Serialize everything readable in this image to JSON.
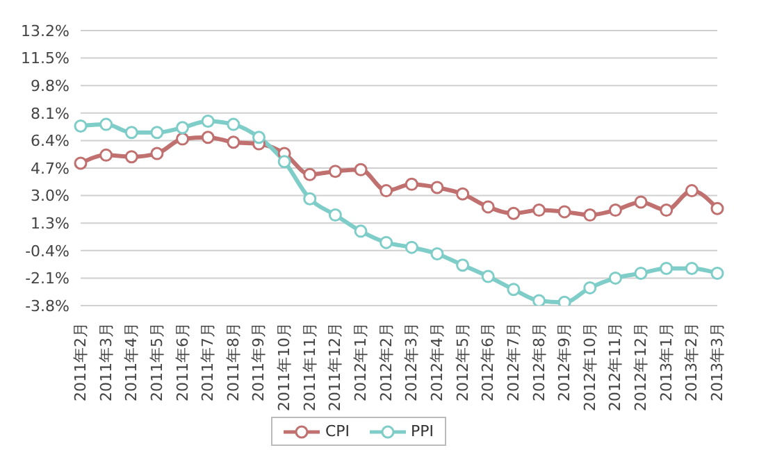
{
  "chart_data": {
    "type": "line",
    "categories": [
      "2011年2月",
      "2011年3月",
      "2011年4月",
      "2011年5月",
      "2011年6月",
      "2011年7月",
      "2011年8月",
      "2011年9月",
      "2011年10月",
      "2011年11月",
      "2011年12月",
      "2012年1月",
      "2012年2月",
      "2012年3月",
      "2012年4月",
      "2012年5月",
      "2012年6月",
      "2012年7月",
      "2012年8月",
      "2012年9月",
      "2012年10月",
      "2012年11月",
      "2012年12月",
      "2013年1月",
      "2013年2月",
      "2013年3月"
    ],
    "series": [
      {
        "name": "CPI",
        "color": "#c0706f",
        "values": [
          5.0,
          5.5,
          5.4,
          5.6,
          6.5,
          6.6,
          6.3,
          6.2,
          5.6,
          4.3,
          4.5,
          4.6,
          3.3,
          3.7,
          3.5,
          3.1,
          2.3,
          1.9,
          2.1,
          2.0,
          1.8,
          2.1,
          2.6,
          2.1,
          3.3,
          2.2
        ]
      },
      {
        "name": "PPI",
        "color": "#7ecdc8",
        "values": [
          7.3,
          7.4,
          6.9,
          6.9,
          7.2,
          7.6,
          7.4,
          6.6,
          5.1,
          2.8,
          1.8,
          0.8,
          0.1,
          -0.2,
          -0.6,
          -1.3,
          -2.0,
          -2.8,
          -3.5,
          -3.6,
          -2.7,
          -2.1,
          -1.8,
          -1.5,
          -1.5,
          -1.8
        ]
      }
    ],
    "ylim": [
      -3.8,
      13.2
    ],
    "yticks": [
      {
        "value": -3.8,
        "label": "-3.8%"
      },
      {
        "value": -2.1,
        "label": "-2.1%"
      },
      {
        "value": -0.4,
        "label": "-0.4%"
      },
      {
        "value": 1.3,
        "label": "1.3%"
      },
      {
        "value": 3.0,
        "label": "3.0%"
      },
      {
        "value": 4.7,
        "label": "4.7%"
      },
      {
        "value": 6.4,
        "label": "6.4%"
      },
      {
        "value": 8.1,
        "label": "8.1%"
      },
      {
        "value": 9.8,
        "label": "9.8%"
      },
      {
        "value": 11.5,
        "label": "11.5%"
      },
      {
        "value": 13.2,
        "label": "13.2%"
      }
    ],
    "grid": "y",
    "legend": "bottom",
    "marker": "circle",
    "line_style": "solid"
  }
}
